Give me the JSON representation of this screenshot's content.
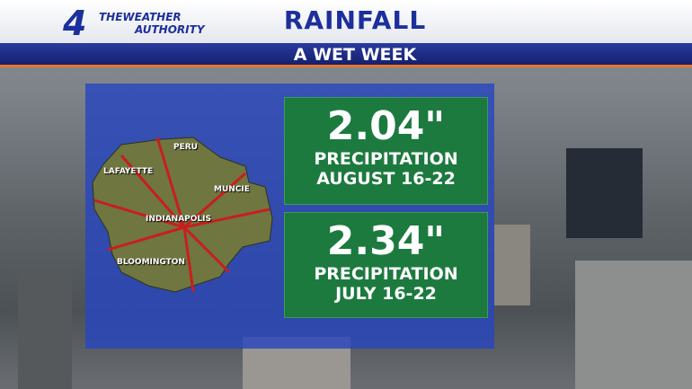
{
  "logo": {
    "channel": "4",
    "line1": "THEWEATHER",
    "line2": "AUTHORITY"
  },
  "header": {
    "title": "RAINFALL",
    "subtitle": "A WET WEEK"
  },
  "map": {
    "labels": [
      "PERU",
      "LAFAYETTE",
      "MUNCIE",
      "INDIANAPOLIS",
      "BLOOMINGTON"
    ]
  },
  "stats": [
    {
      "value": "2.04\"",
      "label": "PRECIPITATION",
      "period": "AUGUST 16-22"
    },
    {
      "value": "2.34\"",
      "label": "PRECIPITATION",
      "period": "JULY 16-22"
    }
  ]
}
